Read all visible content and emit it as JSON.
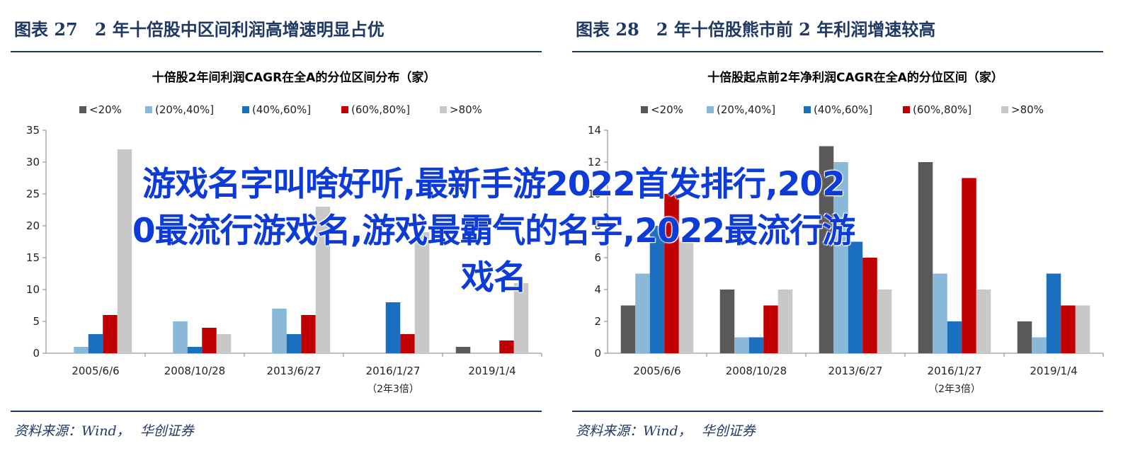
{
  "overlay": {
    "lines": [
      "游戏名字叫啥好听,最新手游2022首发排行,202",
      "0最流行游戏名,游戏最霸气的名字,2022最流行游",
      "戏名"
    ]
  },
  "colors": {
    "series": [
      "#595959",
      "#8ab8d8",
      "#1b6fbf",
      "#c00000",
      "#c8c8c8"
    ],
    "navy": "#1f3864",
    "overlay_text": "#0c3bd8"
  },
  "panels": [
    {
      "figure_title": "图表 27　2 年十倍股中区间利润高增速明显占优",
      "source": {
        "label": "资料来源：Wind",
        "sep": "，",
        "org": "华创证券"
      }
    },
    {
      "figure_title": "图表 28　2 年十倍股熊市前 2 年利润增速较高",
      "source": {
        "label": "资料来源：Wind",
        "sep": "，",
        "org": "华创证券"
      }
    }
  ],
  "chart_data": [
    {
      "type": "bar",
      "title": "十倍股2年间利润CAGR在全A的分位区间分布（家）",
      "categories": [
        "2005/6/6",
        "2008/10/28",
        "2013/6/27",
        "2016/1/27",
        "2019/1/4"
      ],
      "category_notes": [
        "",
        "",
        "",
        "（2年3倍）",
        ""
      ],
      "ylim": [
        0,
        35
      ],
      "yticks": [
        0,
        5,
        10,
        15,
        20,
        25,
        30,
        35
      ],
      "legend_position": "top",
      "series": [
        {
          "name": "<20%",
          "values": [
            0,
            0,
            0,
            0,
            1
          ]
        },
        {
          "name": "(20%,40%]",
          "values": [
            1,
            5,
            7,
            0,
            0
          ]
        },
        {
          "name": "(40%,60%]",
          "values": [
            3,
            1,
            3,
            8,
            0
          ]
        },
        {
          "name": "(60%,80%]",
          "values": [
            6,
            4,
            6,
            3,
            2
          ]
        },
        {
          "name": ">80%",
          "values": [
            32,
            3,
            23,
            19,
            11
          ]
        }
      ]
    },
    {
      "type": "bar",
      "title": "十倍股起点前2年净利润CAGR在全A的分位区间（家）",
      "categories": [
        "2005/6/6",
        "2008/10/28",
        "2013/6/27",
        "2016/1/27",
        "2019/1/4"
      ],
      "category_notes": [
        "",
        "",
        "",
        "（2年3倍）",
        ""
      ],
      "ylim": [
        0,
        14
      ],
      "yticks": [
        0,
        2,
        4,
        6,
        8,
        10,
        12,
        14
      ],
      "legend_position": "top",
      "series": [
        {
          "name": "<20%",
          "values": [
            3,
            4,
            13,
            12,
            2
          ]
        },
        {
          "name": "(20%,40%]",
          "values": [
            5,
            1,
            12,
            5,
            1
          ]
        },
        {
          "name": "(40%,60%]",
          "values": [
            8,
            1,
            7,
            2,
            5
          ]
        },
        {
          "name": "(60%,80%]",
          "values": [
            10,
            3,
            6,
            11,
            3
          ]
        },
        {
          "name": ">80%",
          "values": [
            7,
            4,
            4,
            4,
            3
          ]
        }
      ]
    }
  ]
}
